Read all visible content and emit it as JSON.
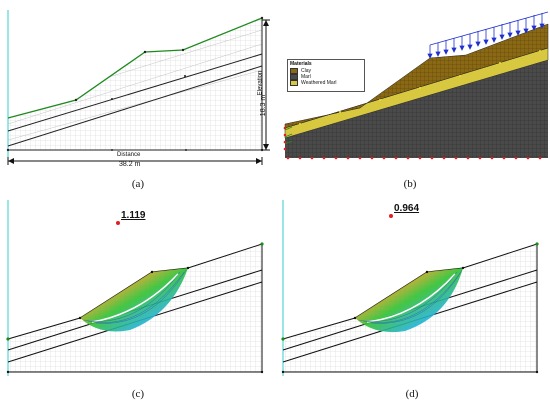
{
  "captions": {
    "a": "(a)",
    "b": "(b)",
    "c": "(c)",
    "d": "(d)"
  },
  "panel_a": {
    "elevation_label": "Elevation",
    "elevation_value": "18.3 m",
    "distance_label": "Distance",
    "distance_value": "38.2 m"
  },
  "panel_b": {
    "legend_title": "Materials",
    "materials": [
      {
        "name": "Clay",
        "color": "#8b6914"
      },
      {
        "name": "Marl",
        "color": "#4a4a4a"
      },
      {
        "name": "Weathered Marl",
        "color": "#d8c840"
      }
    ]
  },
  "panel_c": {
    "factor_of_safety": "1.119"
  },
  "panel_d": {
    "factor_of_safety": "0.964"
  },
  "colors": {
    "surface_line": "#1e8a1e",
    "mesh": "#c8c8c8",
    "load_arrow": "#2030d0",
    "boundary": "#e02020",
    "slip_hot": "#e02020",
    "slip_cold": "#2040e0"
  }
}
